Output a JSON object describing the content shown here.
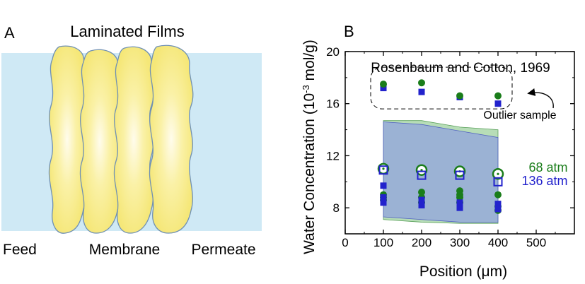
{
  "panel_a": {
    "label": "A",
    "title": "Laminated Films",
    "labels": {
      "feed": "Feed",
      "membrane": "Membrane",
      "permeate": "Permeate"
    },
    "colors": {
      "background": "#cfe9f5",
      "film": "#f7ec82",
      "film_edge": "#6f90b4",
      "film_glow": "#fffbe8"
    }
  },
  "panel_b": {
    "label": "B"
  },
  "chart_data": {
    "type": "scatter",
    "xlabel_prefix": "Position (",
    "xlabel_unit": "μm",
    "xlabel_suffix": ")",
    "ylabel_prefix": "Water Concentration (10",
    "ylabel_exp": "-3",
    "ylabel_suffix": " mol/g)",
    "xlim": [
      0,
      600
    ],
    "ylim": [
      6,
      20
    ],
    "xticks": [
      0,
      100,
      200,
      300,
      400,
      500
    ],
    "yticks": [
      8,
      12,
      16,
      20
    ],
    "annotations": {
      "reference": "Rosenbaum and Cotton, 1969",
      "outlier": "Outlier sample"
    },
    "legend": [
      {
        "label": "68 atm",
        "color": "#1a7d1a"
      },
      {
        "label": "136 atm",
        "color": "#2222cc"
      }
    ],
    "bands": [
      {
        "name": "68 atm range",
        "color": "#9fd19f",
        "x": [
          100,
          200,
          300,
          400
        ],
        "upper": [
          14.7,
          14.7,
          14.2,
          14.0
        ],
        "lower": [
          7.1,
          6.9,
          6.8,
          6.8
        ]
      },
      {
        "name": "136 atm range",
        "color": "#8ea0e0",
        "x": [
          100,
          200,
          300,
          400
        ],
        "upper": [
          14.6,
          14.4,
          13.9,
          13.4
        ],
        "lower": [
          7.3,
          7.1,
          6.9,
          6.9
        ]
      }
    ],
    "series": [
      {
        "name": "68 atm (filled circles)",
        "marker": "circle-filled",
        "color": "#1a7d1a",
        "points": [
          [
            100,
            8.6
          ],
          [
            100,
            8.8
          ],
          [
            100,
            9.0
          ],
          [
            200,
            8.4
          ],
          [
            200,
            8.8
          ],
          [
            200,
            9.2
          ],
          [
            300,
            8.4
          ],
          [
            300,
            8.8
          ],
          [
            300,
            9.0
          ],
          [
            300,
            9.3
          ],
          [
            400,
            7.8
          ],
          [
            400,
            8.1
          ],
          [
            400,
            9.0
          ]
        ]
      },
      {
        "name": "136 atm (filled squares)",
        "marker": "square-filled",
        "color": "#2222cc",
        "points": [
          [
            100,
            8.4
          ],
          [
            100,
            8.8
          ],
          [
            100,
            9.7
          ],
          [
            200,
            8.2
          ],
          [
            200,
            8.6
          ],
          [
            300,
            8.0
          ],
          [
            300,
            8.4
          ],
          [
            400,
            7.9
          ],
          [
            400,
            8.3
          ]
        ]
      },
      {
        "name": "68 atm (open circles)",
        "marker": "circle-open-dot",
        "color": "#1a7d1a",
        "points": [
          [
            100,
            11.0
          ],
          [
            200,
            10.9
          ],
          [
            300,
            10.8
          ],
          [
            400,
            10.6
          ]
        ]
      },
      {
        "name": "136 atm (open squares)",
        "marker": "square-open",
        "color": "#2222cc",
        "points": [
          [
            100,
            10.9
          ],
          [
            200,
            10.5
          ],
          [
            300,
            10.5
          ],
          [
            400,
            10.0
          ]
        ]
      },
      {
        "name": "Outlier 136 atm",
        "marker": "square-filled",
        "color": "#2222cc",
        "points": [
          [
            100,
            17.2
          ],
          [
            200,
            16.9
          ],
          [
            300,
            16.5
          ],
          [
            400,
            16.0
          ]
        ]
      },
      {
        "name": "Outlier 68 atm",
        "marker": "circle-filled",
        "color": "#1a7d1a",
        "points": [
          [
            100,
            17.5
          ],
          [
            200,
            17.6
          ],
          [
            300,
            16.6
          ],
          [
            400,
            16.6
          ]
        ]
      }
    ]
  }
}
